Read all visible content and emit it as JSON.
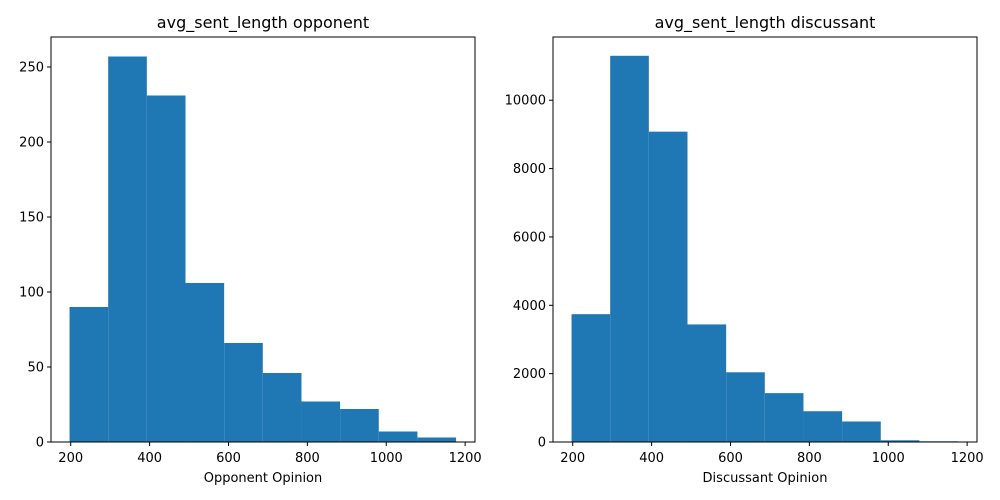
{
  "chart_data": [
    {
      "type": "bar",
      "title": "avg_sent_length opponent",
      "xlabel": "Opponent Opinion",
      "ylabel": "",
      "color": "#1f77b4",
      "xlim": [
        150,
        1225
      ],
      "ylim": [
        0,
        270
      ],
      "xticks": [
        200,
        400,
        600,
        800,
        1000,
        1200
      ],
      "yticks": [
        0,
        50,
        100,
        150,
        200,
        250
      ],
      "bins": [
        {
          "start": 197,
          "end": 295,
          "value": 90
        },
        {
          "start": 295,
          "end": 393,
          "value": 257
        },
        {
          "start": 393,
          "end": 491,
          "value": 231
        },
        {
          "start": 491,
          "end": 589,
          "value": 106
        },
        {
          "start": 589,
          "end": 687,
          "value": 66
        },
        {
          "start": 687,
          "end": 785,
          "value": 46
        },
        {
          "start": 785,
          "end": 883,
          "value": 27
        },
        {
          "start": 883,
          "end": 981,
          "value": 22
        },
        {
          "start": 981,
          "end": 1079,
          "value": 7
        },
        {
          "start": 1079,
          "end": 1177,
          "value": 3
        }
      ]
    },
    {
      "type": "bar",
      "title": "avg_sent_length discussant",
      "xlabel": "Discussant Opinion",
      "ylabel": "",
      "color": "#1f77b4",
      "xlim": [
        150,
        1225
      ],
      "ylim": [
        0,
        11850
      ],
      "xticks": [
        200,
        400,
        600,
        800,
        1000,
        1200
      ],
      "yticks": [
        0,
        2000,
        4000,
        6000,
        8000,
        10000
      ],
      "bins": [
        {
          "start": 197,
          "end": 295,
          "value": 3740
        },
        {
          "start": 295,
          "end": 393,
          "value": 11300
        },
        {
          "start": 393,
          "end": 491,
          "value": 9080
        },
        {
          "start": 491,
          "end": 589,
          "value": 3440
        },
        {
          "start": 589,
          "end": 687,
          "value": 2040
        },
        {
          "start": 687,
          "end": 785,
          "value": 1430
        },
        {
          "start": 785,
          "end": 883,
          "value": 900
        },
        {
          "start": 883,
          "end": 981,
          "value": 600
        },
        {
          "start": 981,
          "end": 1079,
          "value": 50
        },
        {
          "start": 1079,
          "end": 1177,
          "value": 20
        }
      ]
    }
  ]
}
